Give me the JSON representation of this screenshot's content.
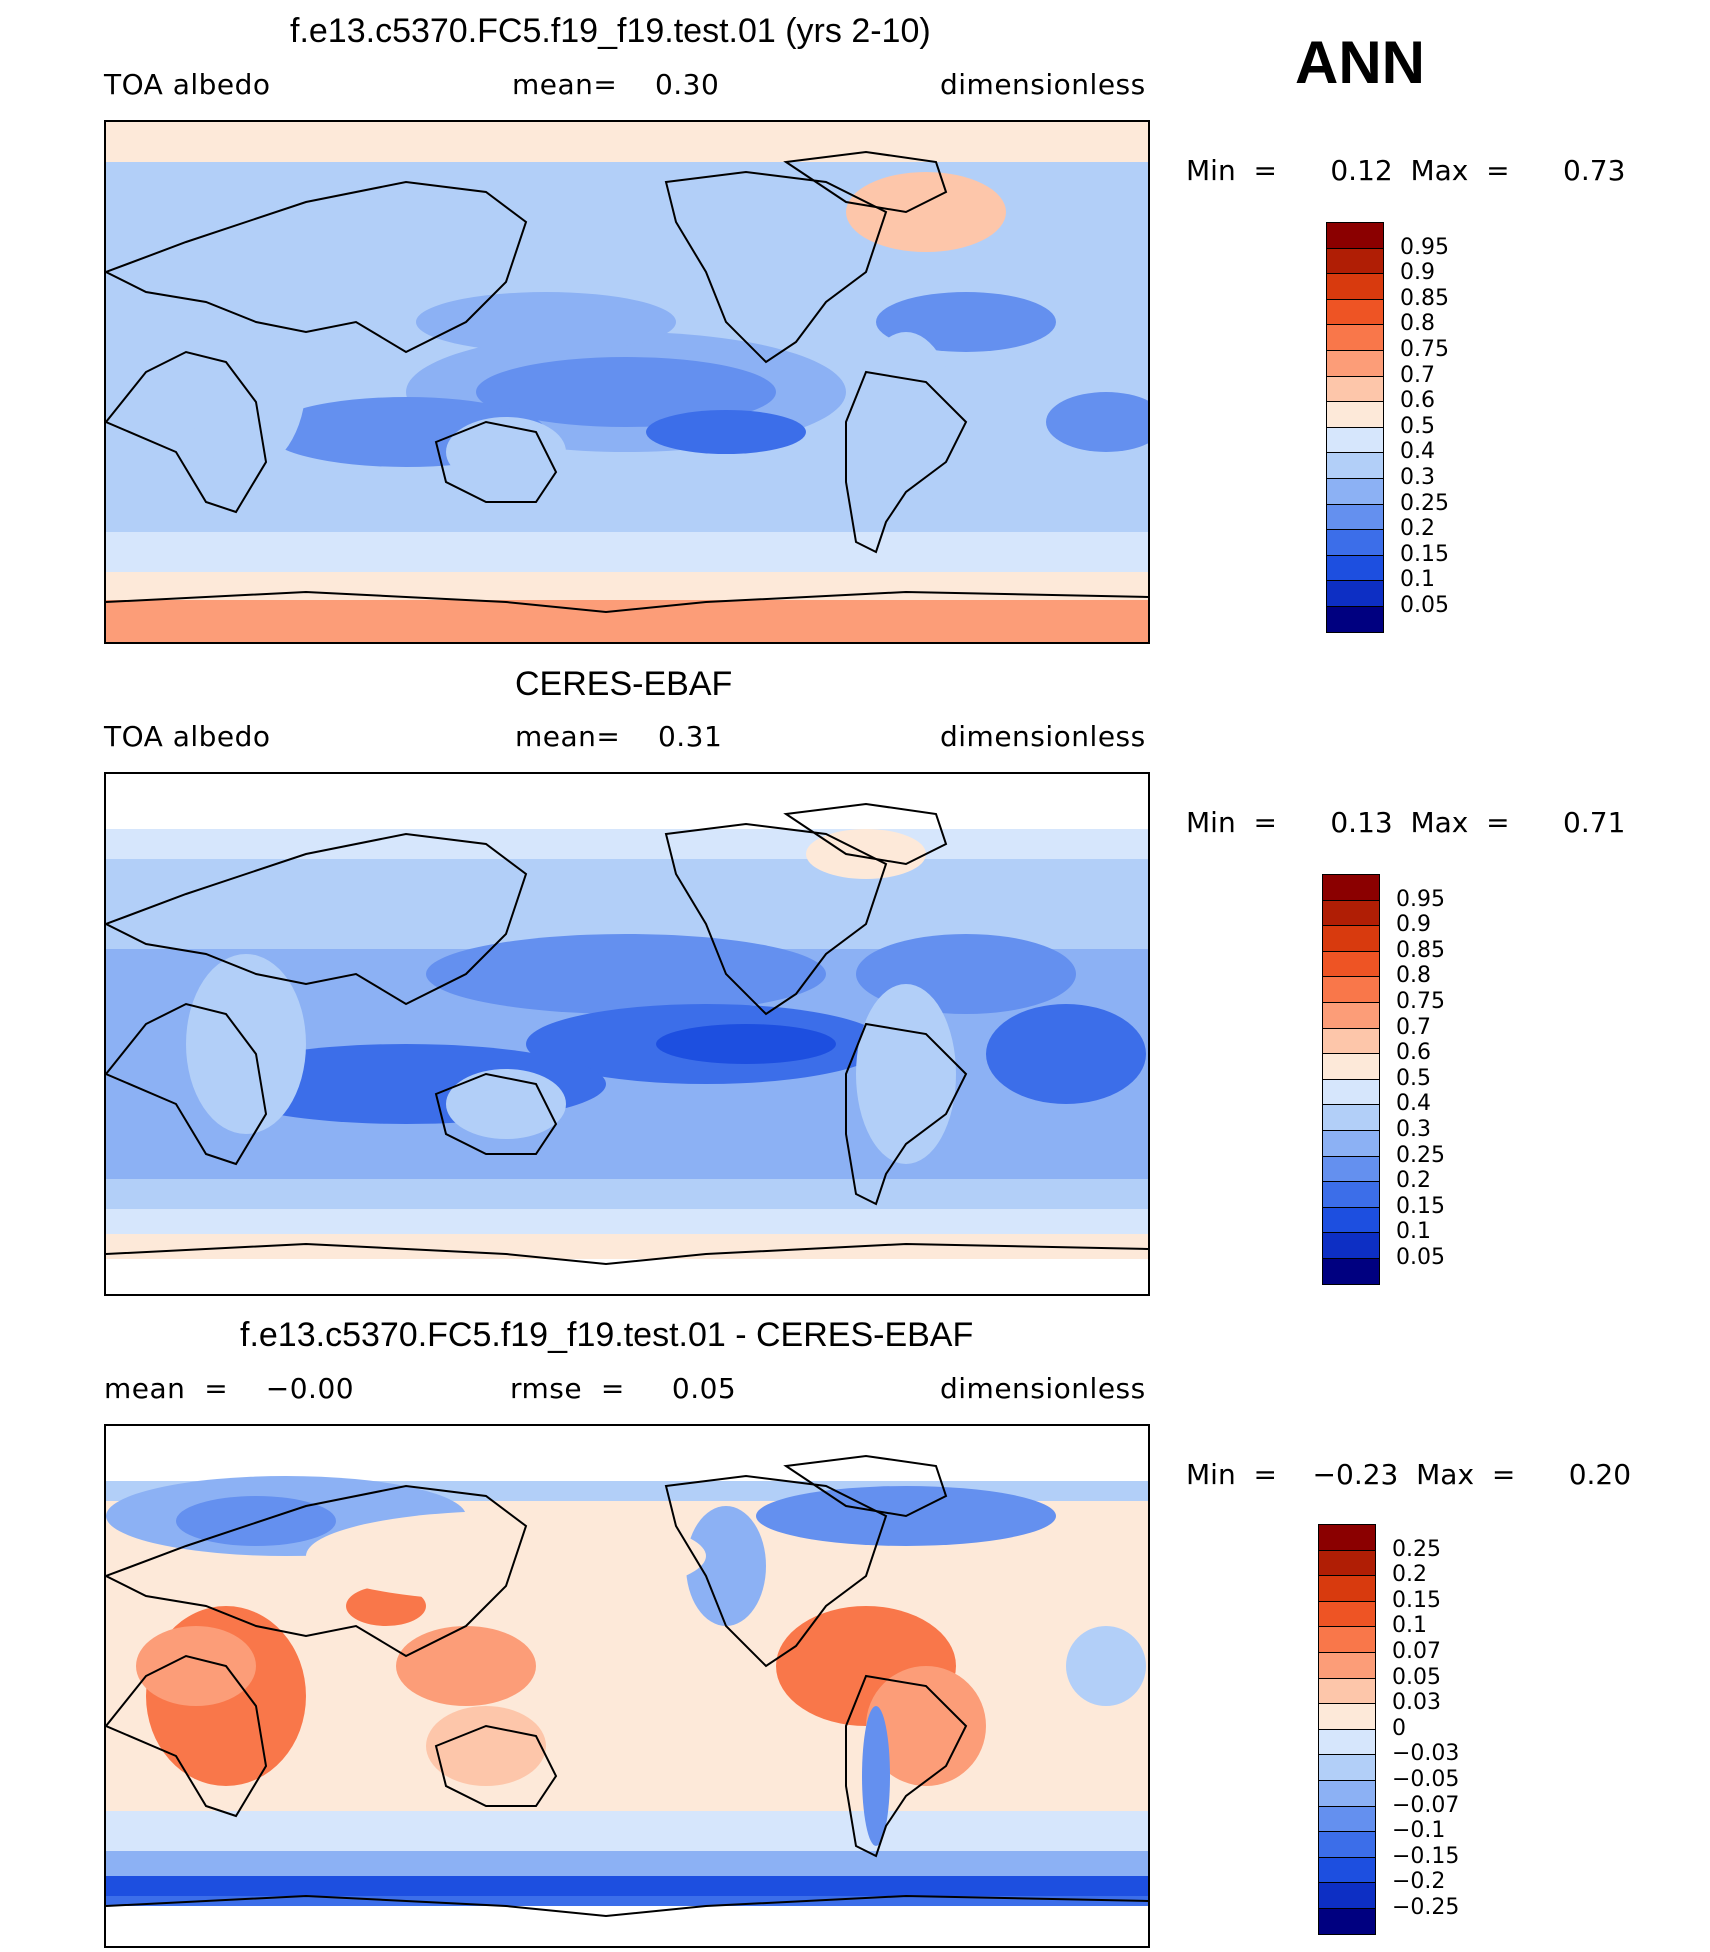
{
  "season": "ANN",
  "panels": [
    {
      "title": "f.e13.c5370.FC5.f19_f19.test.01 (yrs 2-10)",
      "left_label": "TOA  albedo",
      "center_label": "mean=    0.30",
      "right_label": "dimensionless",
      "min_max": "Min  =      0.12  Max  =      0.73",
      "colorbar": {
        "colors": [
          "#8b0000",
          "#b01e05",
          "#d83a0e",
          "#ee5424",
          "#f9774a",
          "#fc9d78",
          "#fdc6aa",
          "#fde9d9",
          "#d6e6fc",
          "#b2cff8",
          "#8cb1f4",
          "#6490ef",
          "#3c6ee9",
          "#1d4fe0",
          "#0d2fc4",
          "#000080"
        ],
        "labels": [
          "0.95",
          "0.9",
          "0.85",
          "0.8",
          "0.75",
          "0.7",
          "0.6",
          "0.5",
          "0.4",
          "0.3",
          "0.25",
          "0.2",
          "0.15",
          "0.1",
          "0.05"
        ]
      }
    },
    {
      "title": "CERES-EBAF",
      "left_label": "TOA  albedo",
      "center_label": "mean=    0.31",
      "right_label": "dimensionless",
      "min_max": "Min  =      0.13  Max  =      0.71",
      "colorbar": {
        "colors": [
          "#8b0000",
          "#b01e05",
          "#d83a0e",
          "#ee5424",
          "#f9774a",
          "#fc9d78",
          "#fdc6aa",
          "#fde9d9",
          "#d6e6fc",
          "#b2cff8",
          "#8cb1f4",
          "#6490ef",
          "#3c6ee9",
          "#1d4fe0",
          "#0d2fc4",
          "#000080"
        ],
        "labels": [
          "0.95",
          "0.9",
          "0.85",
          "0.8",
          "0.75",
          "0.7",
          "0.6",
          "0.5",
          "0.4",
          "0.3",
          "0.25",
          "0.2",
          "0.15",
          "0.1",
          "0.05"
        ]
      }
    },
    {
      "title": "f.e13.c5370.FC5.f19_f19.test.01 - CERES-EBAF",
      "left_label": "mean  =    −0.00",
      "center_label": "rmse  =     0.05",
      "right_label": "dimensionless",
      "min_max": "Min  =    −0.23  Max  =      0.20",
      "colorbar": {
        "colors": [
          "#8b0000",
          "#b01e05",
          "#d83a0e",
          "#ee5424",
          "#f9774a",
          "#fc9d78",
          "#fdc6aa",
          "#fde9d9",
          "#d6e6fc",
          "#b2cff8",
          "#8cb1f4",
          "#6490ef",
          "#3c6ee9",
          "#1d4fe0",
          "#0d2fc4",
          "#000080"
        ],
        "labels": [
          "0.25",
          "0.2",
          "0.15",
          "0.1",
          "0.07",
          "0.05",
          "0.03",
          "0",
          "−0.03",
          "−0.05",
          "−0.07",
          "−0.1",
          "−0.15",
          "−0.2",
          "−0.25"
        ]
      }
    }
  ]
}
